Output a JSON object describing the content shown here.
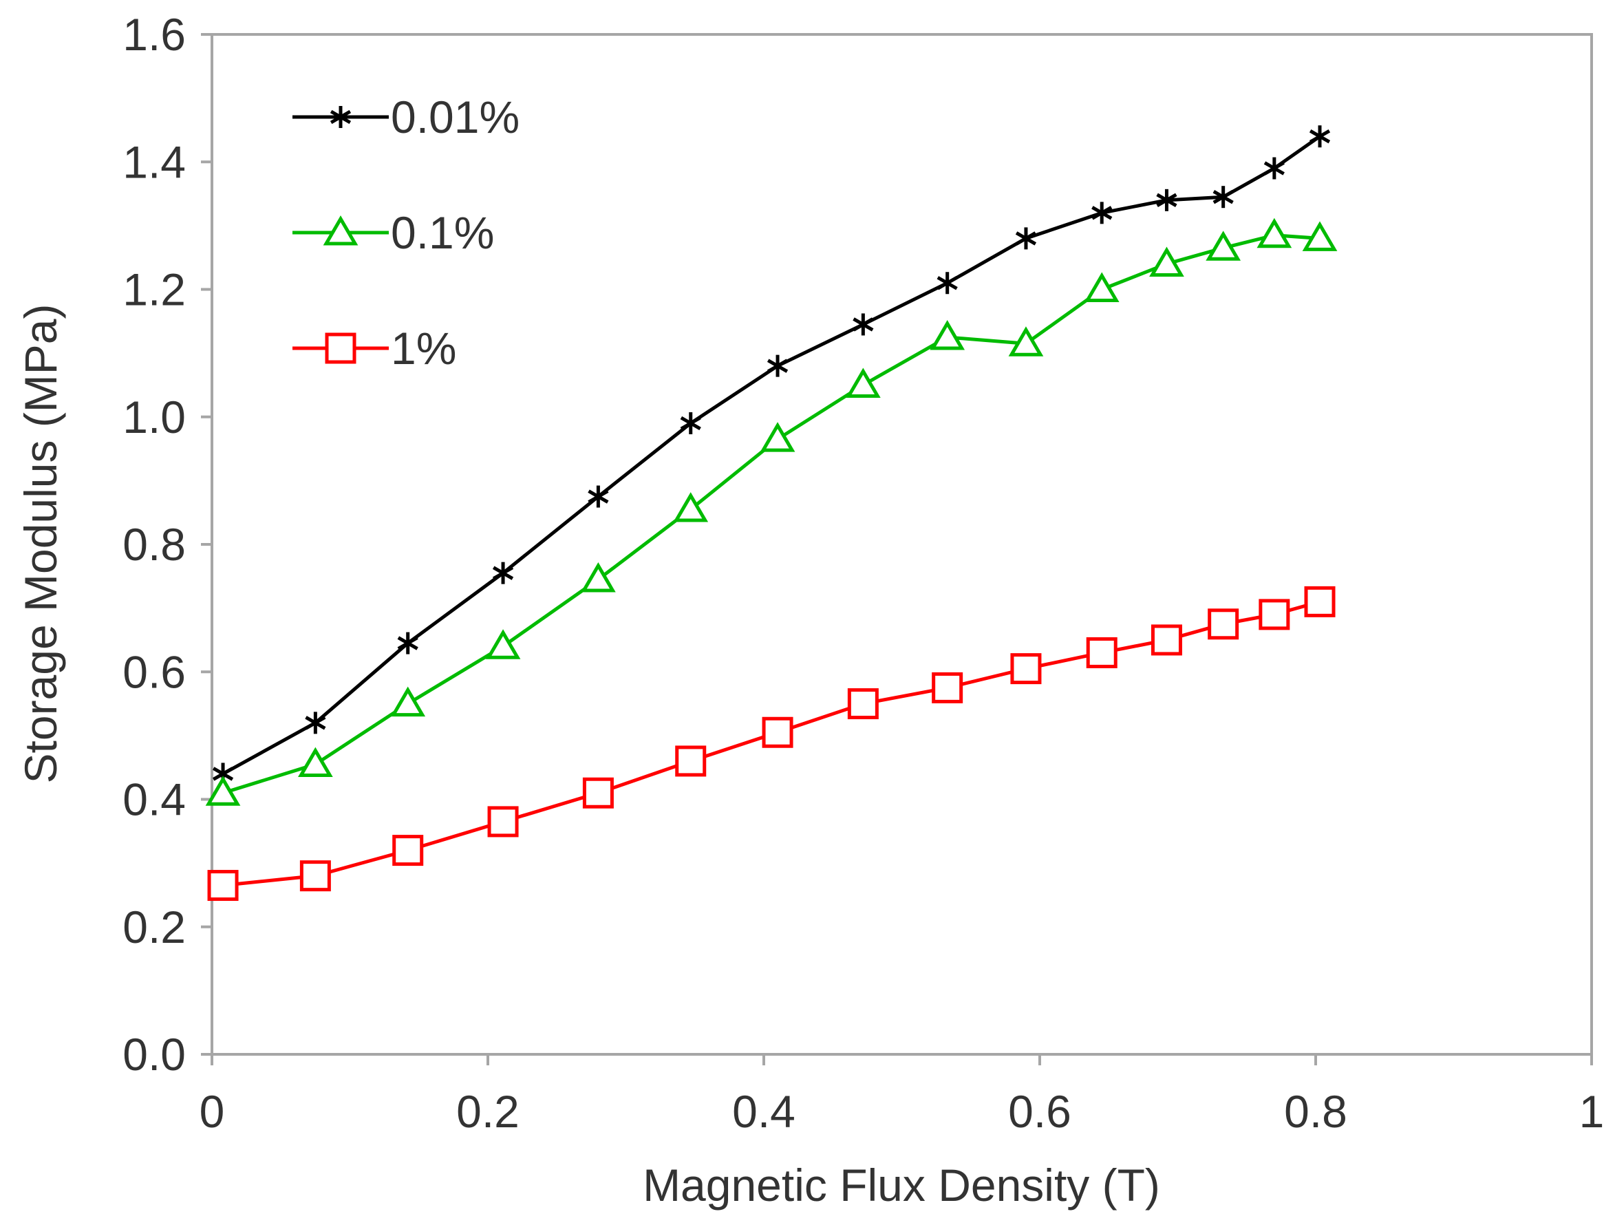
{
  "chart_data": {
    "type": "line",
    "title": "",
    "xlabel": "Magnetic Flux Density (T)",
    "ylabel": "Storage Modulus (MPa)",
    "xlim": [
      0,
      1
    ],
    "ylim": [
      0,
      1.6
    ],
    "x_ticks": [
      "0",
      "0.2",
      "0.4",
      "0.6",
      "0.8",
      "1"
    ],
    "y_ticks": [
      "0.0",
      "0.2",
      "0.4",
      "0.6",
      "0.8",
      "1.0",
      "1.2",
      "1.4",
      "1.6"
    ],
    "grid": false,
    "legend_position": "top-left",
    "x": [
      0.008,
      0.075,
      0.142,
      0.211,
      0.28,
      0.347,
      0.41,
      0.472,
      0.533,
      0.59,
      0.645,
      0.692,
      0.733,
      0.77,
      0.803
    ],
    "series": [
      {
        "name": "0.01%",
        "color": "#000000",
        "marker": "asterisk",
        "values": [
          0.44,
          0.52,
          0.645,
          0.755,
          0.875,
          0.99,
          1.08,
          1.145,
          1.21,
          1.28,
          1.32,
          1.34,
          1.345,
          1.39,
          1.44
        ]
      },
      {
        "name": "0.1%",
        "color": "#00bb00",
        "marker": "triangle",
        "values": [
          0.41,
          0.455,
          0.55,
          0.64,
          0.745,
          0.855,
          0.965,
          1.05,
          1.125,
          1.115,
          1.2,
          1.24,
          1.265,
          1.285,
          1.28
        ]
      },
      {
        "name": "1%",
        "color": "#ff0000",
        "marker": "square",
        "values": [
          0.265,
          0.28,
          0.32,
          0.365,
          0.41,
          0.46,
          0.505,
          0.55,
          0.575,
          0.605,
          0.63,
          0.65,
          0.675,
          0.69,
          0.71
        ]
      }
    ]
  }
}
